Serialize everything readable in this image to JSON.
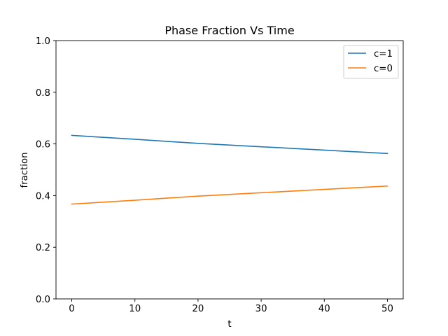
{
  "chart_data": {
    "type": "line",
    "title": "Phase Fraction Vs Time",
    "xlabel": "t",
    "ylabel": "fraction",
    "xlim": [
      -2.5,
      52.5
    ],
    "ylim": [
      0.0,
      1.0
    ],
    "xticks": [
      "0",
      "10",
      "20",
      "30",
      "40",
      "50"
    ],
    "yticks": [
      "0.0",
      "0.2",
      "0.4",
      "0.6",
      "0.8",
      "1.0"
    ],
    "legend_position": "top-right",
    "grid": false,
    "x": [
      0,
      10,
      20,
      30,
      40,
      50
    ],
    "series": [
      {
        "name": "c=1",
        "color": "#1f77b4",
        "values": [
          0.633,
          0.618,
          0.602,
          0.589,
          0.576,
          0.563
        ]
      },
      {
        "name": "c=0",
        "color": "#ff7f0e",
        "values": [
          0.367,
          0.382,
          0.398,
          0.411,
          0.424,
          0.437
        ]
      }
    ]
  }
}
